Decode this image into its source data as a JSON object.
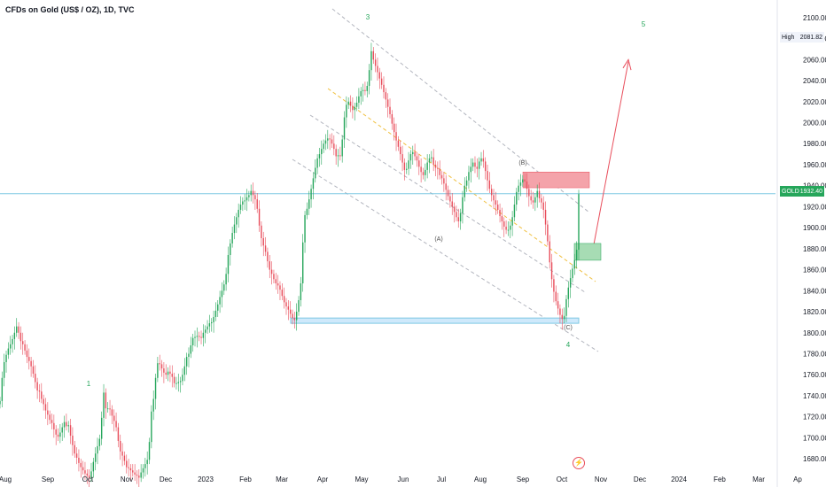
{
  "title": "CFDs on Gold (US$ / OZ), 1D, TVC",
  "chart_data": {
    "type": "candlestick",
    "symbol": "GOLD",
    "ylim": [
      1670,
      2110
    ],
    "price_ticks": [
      1680,
      1700,
      1720,
      1740,
      1760,
      1780,
      1800,
      1820,
      1840,
      1860,
      1880,
      1900,
      1920,
      1940,
      1960,
      1980,
      2000,
      2020,
      2040,
      2060,
      2080,
      2100
    ],
    "x_ticks": [
      "Aug",
      "Sep",
      "Oct",
      "Nov",
      "Dec",
      "2023",
      "Feb",
      "Mar",
      "Apr",
      "May",
      "Jun",
      "Jul",
      "Aug",
      "Sep",
      "Oct",
      "Nov",
      "Dec",
      "2024",
      "Feb",
      "Mar",
      "Ap"
    ],
    "closes": [
      1735,
      1757,
      1772,
      1779,
      1785,
      1789,
      1794,
      1800,
      1806,
      1800,
      1792,
      1789,
      1783,
      1777,
      1773,
      1768,
      1761,
      1753,
      1745,
      1744,
      1737,
      1732,
      1726,
      1722,
      1717,
      1714,
      1708,
      1703,
      1701,
      1705,
      1710,
      1715,
      1711,
      1712,
      1702,
      1693,
      1685,
      1681,
      1676,
      1672,
      1669,
      1666,
      1664,
      1662,
      1668,
      1677,
      1685,
      1692,
      1699,
      1719,
      1743,
      1728,
      1728,
      1727,
      1721,
      1716,
      1710,
      1697,
      1687,
      1683,
      1678,
      1672,
      1671,
      1669,
      1667,
      1665,
      1664,
      1662,
      1667,
      1671,
      1675,
      1679,
      1696,
      1725,
      1737,
      1757,
      1771,
      1770,
      1766,
      1762,
      1760,
      1763,
      1761,
      1758,
      1752,
      1752,
      1753,
      1754,
      1760,
      1768,
      1777,
      1780,
      1788,
      1795,
      1796,
      1797,
      1796,
      1795,
      1800,
      1803,
      1806,
      1809,
      1810,
      1815,
      1821,
      1827,
      1834,
      1840,
      1846,
      1856,
      1874,
      1885,
      1895,
      1903,
      1910,
      1917,
      1922,
      1925,
      1926,
      1929,
      1931,
      1935,
      1931,
      1927,
      1918,
      1902,
      1890,
      1883,
      1877,
      1868,
      1860,
      1856,
      1851,
      1847,
      1845,
      1841,
      1835,
      1829,
      1825,
      1822,
      1818,
      1814,
      1812,
      1820,
      1831,
      1847,
      1886,
      1912,
      1918,
      1927,
      1937,
      1947,
      1957,
      1966,
      1970,
      1975,
      1980,
      1983,
      1985,
      1984,
      1980,
      1975,
      1968,
      1969,
      1968,
      1984,
      2005,
      2017,
      2020,
      2016,
      2012,
      2015,
      2019,
      2025,
      2030,
      2031,
      2030,
      2035,
      2050,
      2068,
      2060,
      2054,
      2048,
      2042,
      2036,
      2029,
      2022,
      2015,
      2008,
      1999,
      1991,
      1983,
      1977,
      1970,
      1962,
      1955,
      1956,
      1964,
      1970,
      1972,
      1968,
      1964,
      1958,
      1953,
      1950,
      1955,
      1962,
      1966,
      1967,
      1960,
      1957,
      1956,
      1950,
      1947,
      1942,
      1936,
      1930,
      1925,
      1920,
      1915,
      1910,
      1906,
      1914,
      1929,
      1940,
      1945,
      1953,
      1958,
      1962,
      1958,
      1956,
      1963,
      1966,
      1963,
      1954,
      1945,
      1937,
      1931,
      1926,
      1922,
      1917,
      1911,
      1906,
      1901,
      1898,
      1898,
      1902,
      1910,
      1922,
      1934,
      1940,
      1943,
      1946,
      1944,
      1937,
      1930,
      1926,
      1924,
      1929,
      1935,
      1928,
      1924,
      1917,
      1903,
      1887,
      1867,
      1851,
      1839,
      1830,
      1823,
      1817,
      1813,
      1816,
      1832,
      1843,
      1852,
      1861,
      1869,
      1879,
      1932
    ]
  },
  "waves": {
    "w1": "1",
    "w3": "3",
    "w4": "4",
    "w5": "5",
    "a": "(A)",
    "b": "(B)",
    "c": "(C)"
  },
  "high": {
    "label": "High",
    "value": "2081.82"
  },
  "last": {
    "label": "GOLD",
    "value": "1932.40"
  },
  "flash_icon": "lightning-icon",
  "colors": {
    "up": "#26a65b",
    "down": "#e84d5b",
    "accent": "#2962ff"
  }
}
